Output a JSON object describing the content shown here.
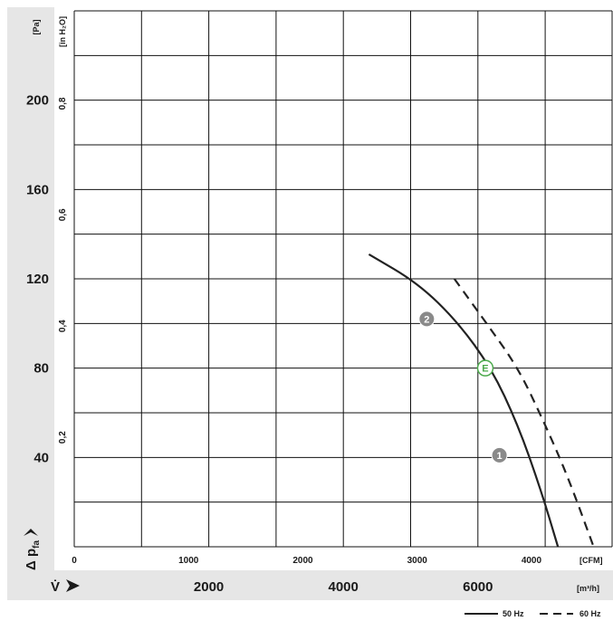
{
  "chart_data": {
    "type": "line",
    "y_axis_pa": {
      "unit": "[Pa]",
      "ticks": [
        40,
        80,
        120,
        160,
        200
      ],
      "range": [
        0,
        240
      ]
    },
    "y_axis_inh2o": {
      "unit": "[in H₂O]",
      "ticks": [
        "0,2",
        "0,4",
        "0,6",
        "0,8"
      ]
    },
    "x_axis_cfm": {
      "unit": "[CFM]",
      "ticks": [
        "0",
        "1000",
        "2000",
        "3000",
        "4000"
      ]
    },
    "x_axis_m3h": {
      "unit": "[m³/h]",
      "ticks": [
        "2000",
        "4000",
        "6000"
      ],
      "range": [
        0,
        8000
      ]
    },
    "y_symbol": "Δ p",
    "y_symbol_sub": "fa",
    "x_symbol": "V̇",
    "grid": true,
    "series": [
      {
        "name": "50 Hz",
        "style": "solid",
        "points": [
          [
            4380,
            131
          ],
          [
            5110,
            118
          ],
          [
            5690,
            101
          ],
          [
            6200,
            80
          ],
          [
            6590,
            55
          ],
          [
            6930,
            26
          ],
          [
            7190,
            0
          ]
        ]
      },
      {
        "name": "60 Hz",
        "style": "dashed",
        "points": [
          [
            5650,
            120
          ],
          [
            6130,
            100
          ],
          [
            6600,
            80
          ],
          [
            6980,
            56
          ],
          [
            7330,
            32
          ],
          [
            7720,
            0
          ]
        ]
      }
    ],
    "markers": [
      {
        "label": "2",
        "x": 5240,
        "y": 102,
        "style": "filled"
      },
      {
        "label": "E",
        "x": 6110,
        "y": 80,
        "style": "open"
      },
      {
        "label": "1",
        "x": 6320,
        "y": 41,
        "style": "filled"
      }
    ],
    "legend": {
      "position": "bottom-right"
    },
    "colors": {
      "band": "#e6e6e6",
      "curve": "#222222",
      "marker_fill": "#8a8a8a",
      "marker_E": "#4caa4c"
    }
  }
}
